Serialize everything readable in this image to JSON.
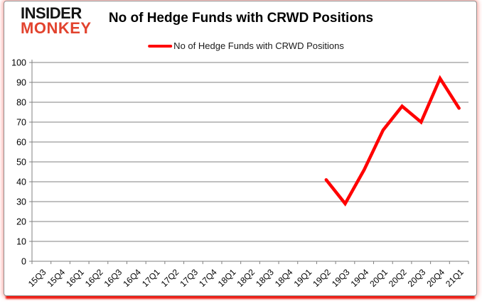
{
  "logo": {
    "line1": "INSIDER",
    "line2": "MONKEY",
    "color1": "#141414",
    "color2": "#e2432e"
  },
  "header": {
    "title": "No of Hedge Funds with CRWD Positions"
  },
  "legend": {
    "label": "No of Hedge Funds with CRWD Positions",
    "marker_color": "#ff0000"
  },
  "colors": {
    "series_line": "#ff0000",
    "gridline": "#808080",
    "axis": "#808080",
    "tick_text": "#000000",
    "frame_border": "#8f8f8f",
    "frame_glow": "#ee1c14",
    "background": "#ffffff"
  },
  "chart_data": {
    "type": "line",
    "title": "No of Hedge Funds with CRWD Positions",
    "categories": [
      "15Q3",
      "15Q4",
      "16Q1",
      "16Q2",
      "16Q3",
      "16Q4",
      "17Q1",
      "17Q2",
      "17Q3",
      "17Q4",
      "18Q1",
      "18Q2",
      "18Q3",
      "18Q4",
      "19Q1",
      "19Q2",
      "19Q3",
      "19Q4",
      "20Q1",
      "20Q2",
      "20Q3",
      "20Q4",
      "21Q1"
    ],
    "series": [
      {
        "name": "No of Hedge Funds with CRWD Positions",
        "color": "#ff0000",
        "values": [
          null,
          null,
          null,
          null,
          null,
          null,
          null,
          null,
          null,
          null,
          null,
          null,
          null,
          null,
          null,
          41,
          29,
          46,
          66,
          78,
          70,
          92,
          77
        ]
      }
    ],
    "xlabel": "",
    "ylabel": "",
    "ylim": [
      0,
      100
    ],
    "ytick_step": 10,
    "grid": true,
    "legend_position": "top"
  }
}
